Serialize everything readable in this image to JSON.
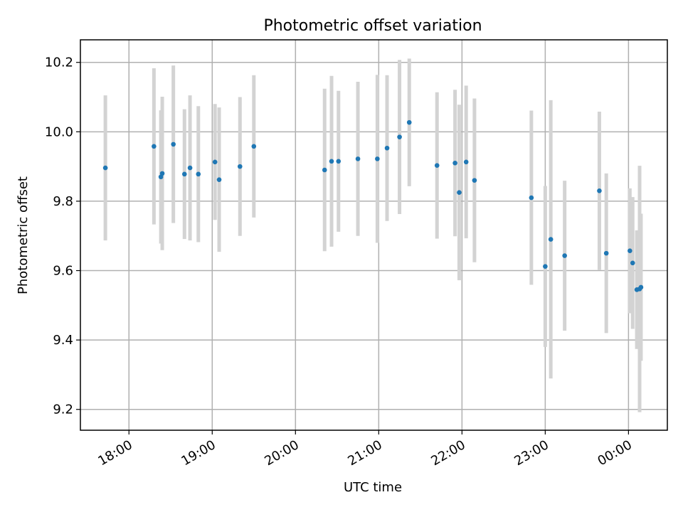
{
  "chart_data": {
    "type": "scatter",
    "title": "Photometric offset variation",
    "xlabel": "UTC time",
    "ylabel": "Photometric offset",
    "x_ticks": [
      "18:00",
      "19:00",
      "20:00",
      "21:00",
      "22:00",
      "23:00",
      "00:00"
    ],
    "y_ticks": [
      "9.2",
      "9.4",
      "9.6",
      "9.8",
      "10.0",
      "10.2"
    ],
    "xlim": [
      "17:25",
      "00:28"
    ],
    "ylim": [
      9.14,
      10.265
    ],
    "grid": true,
    "error_bar_color": "#d3d3d3",
    "point_color": "#1f77b4",
    "points": [
      {
        "time": "17:43",
        "offset": 9.896,
        "err": 0.209
      },
      {
        "time": "18:18",
        "offset": 9.958,
        "err": 0.225
      },
      {
        "time": "18:23",
        "offset": 9.87,
        "err": 0.192
      },
      {
        "time": "18:24",
        "offset": 9.88,
        "err": 0.221
      },
      {
        "time": "18:32",
        "offset": 9.964,
        "err": 0.227
      },
      {
        "time": "18:40",
        "offset": 9.878,
        "err": 0.187
      },
      {
        "time": "18:44",
        "offset": 9.896,
        "err": 0.209
      },
      {
        "time": "18:50",
        "offset": 9.878,
        "err": 0.196
      },
      {
        "time": "19:02",
        "offset": 9.913,
        "err": 0.167
      },
      {
        "time": "19:05",
        "offset": 9.862,
        "err": 0.208
      },
      {
        "time": "19:20",
        "offset": 9.9,
        "err": 0.2
      },
      {
        "time": "19:30",
        "offset": 9.958,
        "err": 0.205
      },
      {
        "time": "20:21",
        "offset": 9.89,
        "err": 0.234
      },
      {
        "time": "20:26",
        "offset": 9.915,
        "err": 0.246
      },
      {
        "time": "20:31",
        "offset": 9.915,
        "err": 0.203
      },
      {
        "time": "20:45",
        "offset": 9.922,
        "err": 0.222
      },
      {
        "time": "20:59",
        "offset": 9.922,
        "err": 0.242
      },
      {
        "time": "21:06",
        "offset": 9.953,
        "err": 0.21
      },
      {
        "time": "21:15",
        "offset": 9.985,
        "err": 0.222
      },
      {
        "time": "21:22",
        "offset": 10.027,
        "err": 0.184
      },
      {
        "time": "21:42",
        "offset": 9.903,
        "err": 0.211
      },
      {
        "time": "21:55",
        "offset": 9.91,
        "err": 0.211
      },
      {
        "time": "21:58",
        "offset": 9.825,
        "err": 0.253
      },
      {
        "time": "22:03",
        "offset": 9.913,
        "err": 0.22
      },
      {
        "time": "22:09",
        "offset": 9.86,
        "err": 0.236
      },
      {
        "time": "22:50",
        "offset": 9.81,
        "err": 0.251
      },
      {
        "time": "23:00",
        "offset": 9.612,
        "err": 0.232
      },
      {
        "time": "23:04",
        "offset": 9.69,
        "err": 0.401
      },
      {
        "time": "23:14",
        "offset": 9.643,
        "err": 0.216
      },
      {
        "time": "23:39",
        "offset": 9.83,
        "err": 0.228
      },
      {
        "time": "23:44",
        "offset": 9.65,
        "err": 0.23
      },
      {
        "time": "00:01",
        "offset": 9.657,
        "err": 0.18
      },
      {
        "time": "00:03",
        "offset": 9.622,
        "err": 0.19
      },
      {
        "time": "00:06",
        "offset": 9.545,
        "err": 0.171
      },
      {
        "time": "00:08",
        "offset": 9.547,
        "err": 0.355
      },
      {
        "time": "00:09",
        "offset": 9.552,
        "err": 0.212
      }
    ]
  }
}
